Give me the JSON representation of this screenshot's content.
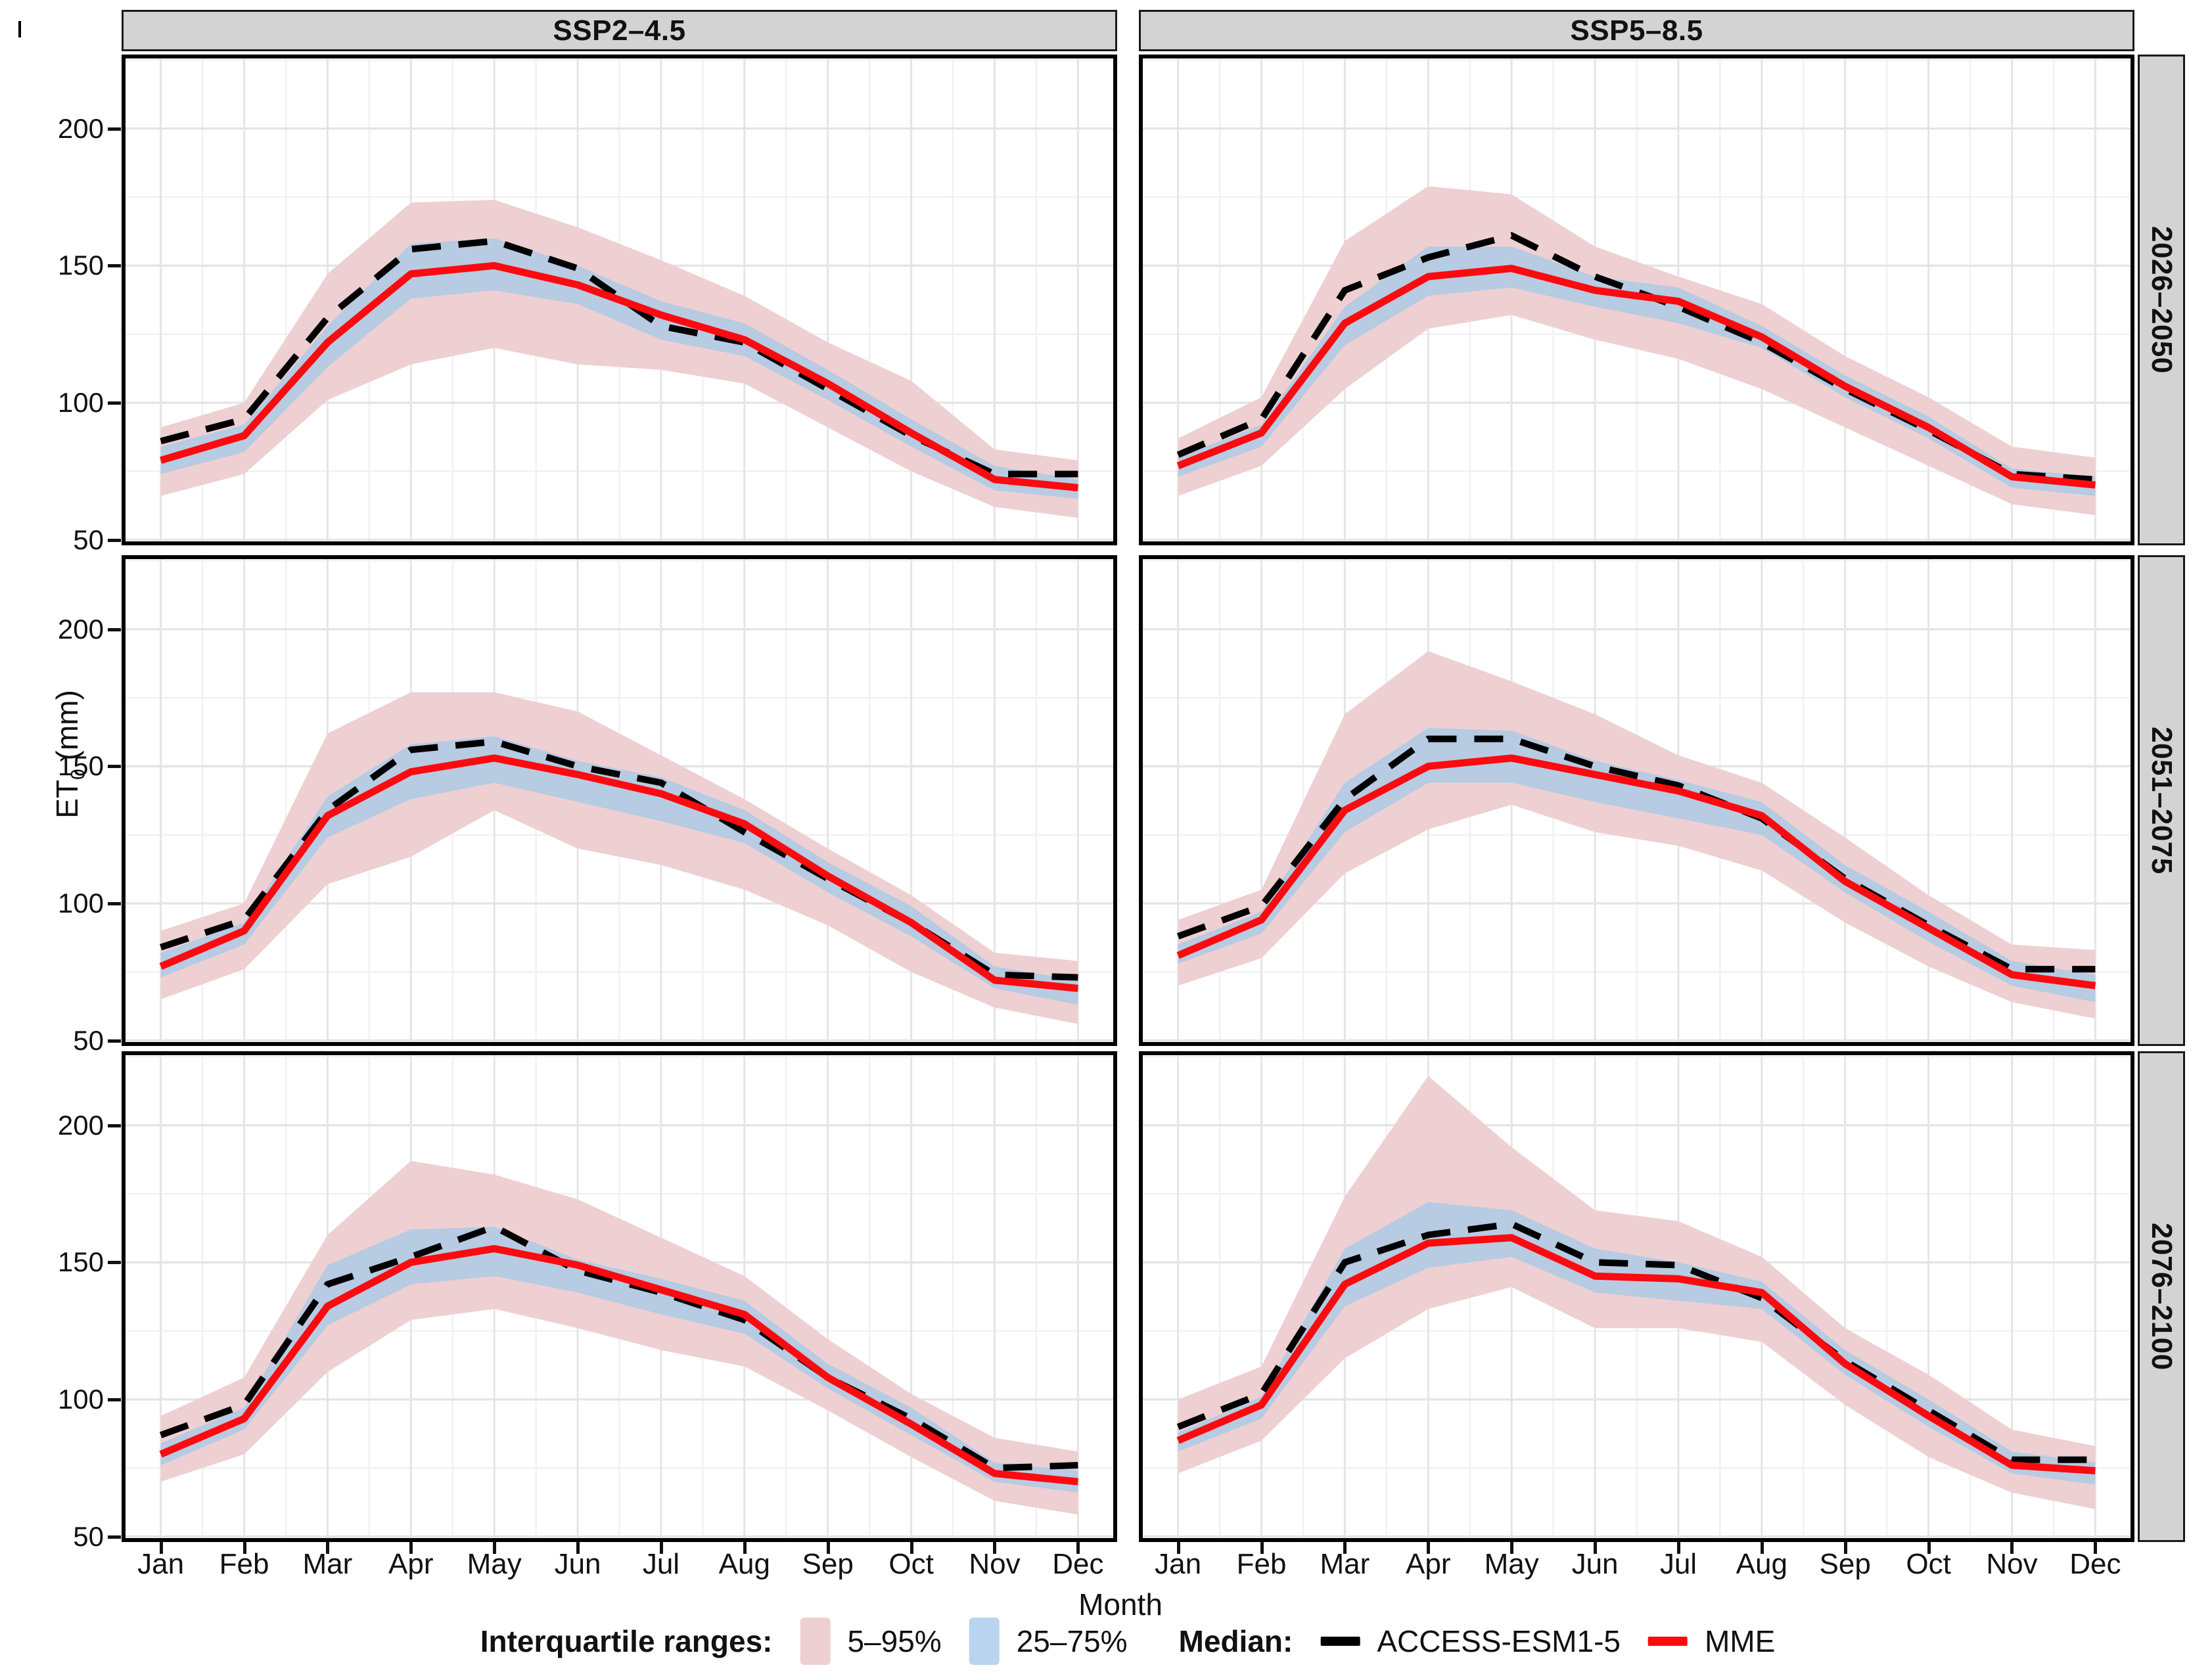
{
  "page": {
    "stray_mark": ""
  },
  "strips": {
    "columns": [
      "SSP2–4.5",
      "SSP5–8.5"
    ],
    "rows": [
      "2026–2050",
      "2051–2075",
      "2076–2100"
    ]
  },
  "axes": {
    "y_title_pre": "ET",
    "y_title_sub": "0",
    "y_title_post": " (mm)",
    "x_title": "Month",
    "y_tick_labels": [
      "200",
      "150",
      "100",
      "50"
    ],
    "y_tick_values": [
      200,
      150,
      100,
      50
    ],
    "month_labels": [
      "Jan",
      "Feb",
      "Mar",
      "Apr",
      "May",
      "Jun",
      "Jul",
      "Aug",
      "Sep",
      "Oct",
      "Nov",
      "Dec"
    ]
  },
  "legend": {
    "ranges_label": "Interquartile ranges:",
    "band_5_95_label": "5–95%",
    "band_25_75_label": "25–75%",
    "median_label": "Median:",
    "access_label": "ACCESS-ESM1-5",
    "mme_label": "MME"
  },
  "colors": {
    "band_5_95": "#eed0d2",
    "band_25_75": "#b7cbe2",
    "access_line": "#000000",
    "mme_line": "#fb0a0f",
    "strip_bg": "#d3d3d3",
    "grid_major": "#e5e5e5",
    "grid_minor": "#f1f1f1",
    "panel_border": "#000000"
  },
  "chart_data": {
    "type": "line",
    "title": "",
    "xlabel": "Month",
    "ylabel": "ET0 (mm)",
    "x": [
      "Jan",
      "Feb",
      "Mar",
      "Apr",
      "May",
      "Jun",
      "Jul",
      "Aug",
      "Sep",
      "Oct",
      "Nov",
      "Dec"
    ],
    "ylim": [
      48,
      227
    ],
    "y_major": [
      50,
      100,
      150,
      200
    ],
    "y_minor": [
      75,
      125,
      175,
      225
    ],
    "legend_position": "bottom",
    "facet_columns": [
      "SSP2–4.5",
      "SSP5–8.5"
    ],
    "facet_rows": [
      "2026–2050",
      "2051–2075",
      "2076–2100"
    ],
    "panels": [
      {
        "scenario": "SSP2–4.5",
        "period": "2026–2050",
        "band_5_95_upper": [
          91,
          100,
          147,
          173,
          174,
          164,
          152,
          139,
          122,
          108,
          83,
          79
        ],
        "band_5_95_lower": [
          66,
          74,
          101,
          114,
          120,
          114,
          112,
          107,
          91,
          75,
          62,
          58
        ],
        "band_25_75_upper": [
          84,
          92,
          128,
          158,
          160,
          150,
          137,
          129,
          112,
          94,
          77,
          72
        ],
        "band_25_75_lower": [
          74,
          82,
          113,
          138,
          141,
          136,
          123,
          117,
          101,
          84,
          68,
          65
        ],
        "access_esm1_5": [
          86,
          94,
          131,
          156,
          159,
          149,
          128,
          122,
          105,
          88,
          74,
          74
        ],
        "mme": [
          79,
          88,
          122,
          147,
          150,
          143,
          132,
          123,
          107,
          89,
          72,
          69
        ]
      },
      {
        "scenario": "SSP5–8.5",
        "period": "2026–2050",
        "band_5_95_upper": [
          87,
          102,
          159,
          179,
          176,
          157,
          146,
          136,
          117,
          102,
          84,
          80
        ],
        "band_5_95_lower": [
          66,
          77,
          105,
          127,
          132,
          123,
          116,
          105,
          91,
          77,
          63,
          59
        ],
        "band_25_75_upper": [
          80,
          92,
          135,
          157,
          157,
          146,
          142,
          128,
          110,
          95,
          76,
          73
        ],
        "band_25_75_lower": [
          73,
          84,
          121,
          139,
          142,
          135,
          129,
          120,
          102,
          87,
          69,
          66
        ],
        "access_esm1_5": [
          81,
          94,
          141,
          153,
          161,
          146,
          135,
          122,
          105,
          90,
          74,
          72
        ],
        "mme": [
          77,
          89,
          129,
          146,
          149,
          141,
          137,
          124,
          106,
          91,
          73,
          70
        ]
      },
      {
        "scenario": "SSP2–4.5",
        "period": "2051–2075",
        "band_5_95_upper": [
          90,
          100,
          162,
          177,
          177,
          170,
          154,
          138,
          120,
          103,
          82,
          79
        ],
        "band_5_95_lower": [
          65,
          76,
          107,
          117,
          134,
          120,
          114,
          105,
          92,
          75,
          62,
          56
        ],
        "band_25_75_upper": [
          82,
          93,
          139,
          158,
          161,
          152,
          146,
          134,
          115,
          99,
          77,
          72
        ],
        "band_25_75_lower": [
          73,
          85,
          124,
          138,
          144,
          137,
          130,
          122,
          104,
          88,
          69,
          63
        ],
        "access_esm1_5": [
          84,
          94,
          134,
          156,
          159,
          150,
          144,
          126,
          109,
          93,
          74,
          73
        ],
        "mme": [
          77,
          90,
          132,
          148,
          153,
          147,
          140,
          129,
          110,
          93,
          72,
          69
        ]
      },
      {
        "scenario": "SSP5–8.5",
        "period": "2051–2075",
        "band_5_95_upper": [
          94,
          105,
          169,
          192,
          181,
          169,
          154,
          144,
          124,
          103,
          85,
          83
        ],
        "band_5_95_lower": [
          70,
          80,
          111,
          127,
          136,
          126,
          121,
          112,
          93,
          77,
          64,
          58
        ],
        "band_25_75_upper": [
          85,
          97,
          144,
          164,
          163,
          152,
          145,
          137,
          114,
          97,
          79,
          74
        ],
        "band_25_75_lower": [
          78,
          89,
          126,
          144,
          144,
          137,
          131,
          125,
          104,
          86,
          70,
          64
        ],
        "access_esm1_5": [
          88,
          99,
          138,
          160,
          160,
          150,
          143,
          131,
          109,
          92,
          76,
          76
        ],
        "mme": [
          81,
          94,
          134,
          150,
          153,
          147,
          141,
          132,
          108,
          91,
          74,
          70
        ]
      },
      {
        "scenario": "SSP2–4.5",
        "period": "2076–2100",
        "band_5_95_upper": [
          94,
          108,
          160,
          187,
          182,
          173,
          159,
          145,
          122,
          102,
          86,
          81
        ],
        "band_5_95_lower": [
          70,
          80,
          110,
          129,
          133,
          126,
          118,
          112,
          96,
          79,
          63,
          58
        ],
        "band_25_75_upper": [
          84,
          97,
          149,
          162,
          163,
          151,
          144,
          136,
          113,
          97,
          77,
          74
        ],
        "band_25_75_lower": [
          76,
          89,
          127,
          142,
          145,
          139,
          131,
          124,
          104,
          87,
          70,
          66
        ],
        "access_esm1_5": [
          87,
          98,
          142,
          152,
          163,
          147,
          139,
          129,
          108,
          93,
          75,
          76
        ],
        "mme": [
          80,
          93,
          134,
          150,
          155,
          149,
          140,
          131,
          108,
          91,
          73,
          70
        ]
      },
      {
        "scenario": "SSP5–8.5",
        "period": "2076–2100",
        "band_5_95_upper": [
          100,
          112,
          174,
          218,
          192,
          169,
          165,
          152,
          126,
          109,
          89,
          83
        ],
        "band_5_95_lower": [
          73,
          85,
          115,
          133,
          141,
          126,
          126,
          121,
          98,
          79,
          66,
          60
        ],
        "band_25_75_upper": [
          88,
          101,
          155,
          172,
          169,
          155,
          150,
          143,
          118,
          100,
          81,
          77
        ],
        "band_25_75_lower": [
          81,
          93,
          134,
          148,
          152,
          139,
          136,
          133,
          109,
          90,
          73,
          69
        ],
        "access_esm1_5": [
          90,
          102,
          150,
          160,
          164,
          150,
          149,
          137,
          114,
          96,
          78,
          78
        ],
        "mme": [
          85,
          98,
          142,
          157,
          159,
          145,
          144,
          139,
          113,
          94,
          76,
          74
        ]
      }
    ]
  }
}
